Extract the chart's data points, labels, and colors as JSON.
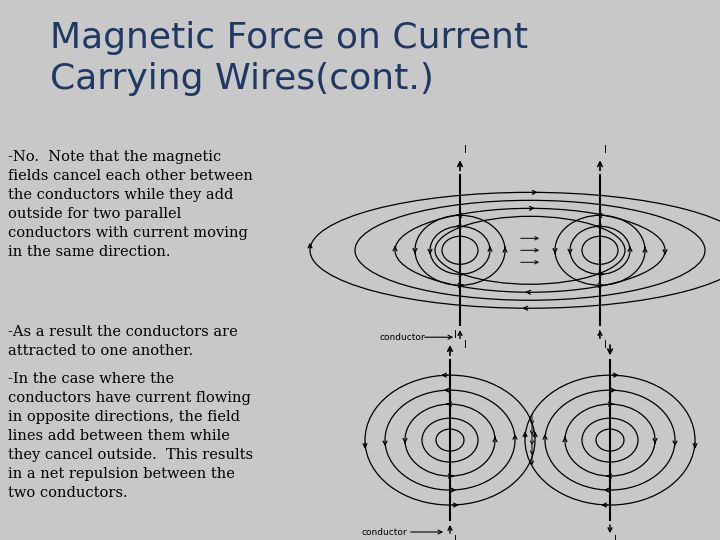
{
  "title_line1": "Magnetic Force on Current",
  "title_line2": "Carrying Wires(cont.)",
  "title_color": "#1F3864",
  "background_color": "#C8C8C8",
  "title_bg_color": "#E8E8E8",
  "body_bg_color": "#C8C8C8",
  "separator_color": "#7B9EC8",
  "title_fontsize": 26,
  "body_fontsize": 10.5,
  "body_text_1": "-No.  Note that the magnetic\nfields cancel each other between\nthe conductors while they add\noutside for two parallel\nconductors with current moving\nin the same direction.",
  "body_text_2": "-As a result the conductors are\nattracted to one another.",
  "body_text_3": "-In the case where the\nconductors have current flowing\nin opposite directions, the field\nlines add between them while\nthey cancel outside.  This results\nin a net repulsion between the\ntwo conductors.",
  "text_color": "#000000",
  "conductor_label": "conductor",
  "diagram_stroke": "#000000"
}
